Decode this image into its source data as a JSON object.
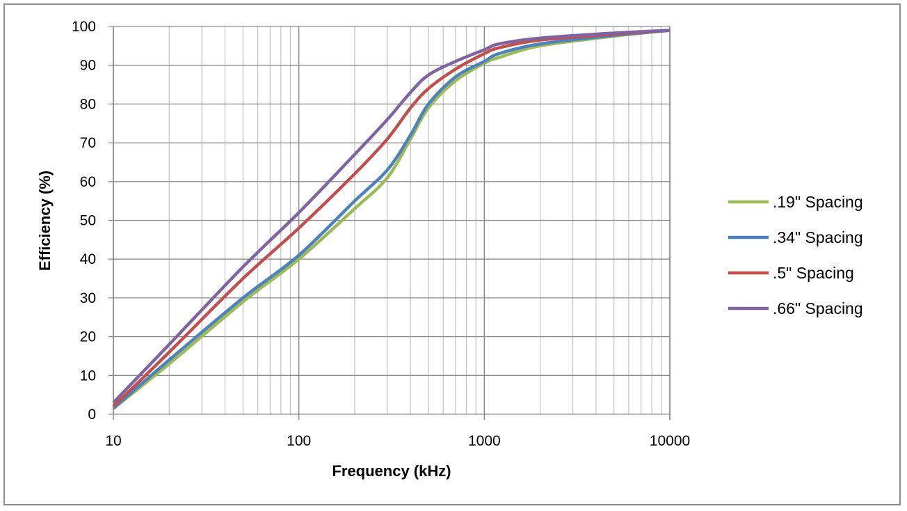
{
  "chart_data": {
    "type": "line",
    "title": "",
    "xlabel": "Frequency (kHz)",
    "ylabel": "Efficiency (%)",
    "x_scale": "log",
    "xlim": [
      10,
      10000
    ],
    "ylim": [
      0,
      100
    ],
    "grid": true,
    "legend_position": "right",
    "x_tick_labels": [
      "10",
      "100",
      "1000",
      "10000"
    ],
    "y_tick_labels": [
      "0",
      "10",
      "20",
      "30",
      "40",
      "50",
      "60",
      "70",
      "80",
      "90",
      "100"
    ],
    "x": [
      10,
      20,
      50,
      100,
      200,
      300,
      400,
      500,
      700,
      1000,
      1200,
      2000,
      5000,
      10000
    ],
    "series": [
      {
        "name": ".19\" Spacing",
        "color": "#9BBB59",
        "values": [
          1.5,
          13,
          29,
          40,
          53,
          61,
          71,
          79,
          86,
          90.5,
          92,
          95,
          97.5,
          99
        ]
      },
      {
        "name": ".34\" Spacing",
        "color": "#4F81BD",
        "values": [
          1.5,
          14,
          30,
          41,
          55,
          63,
          72,
          80,
          87,
          91,
          93,
          95.5,
          97.7,
          99
        ]
      },
      {
        "name": ".5\" Spacing",
        "color": "#C0504D",
        "values": [
          2,
          16,
          35,
          48,
          62,
          71,
          79,
          84,
          89,
          93,
          94.5,
          96.5,
          98,
          99
        ]
      },
      {
        "name": ".66\" Spacing",
        "color": "#8064A2",
        "values": [
          3,
          18,
          38,
          52,
          67,
          76,
          83,
          87.5,
          91,
          94,
          95.5,
          97,
          98.3,
          99
        ]
      }
    ]
  }
}
